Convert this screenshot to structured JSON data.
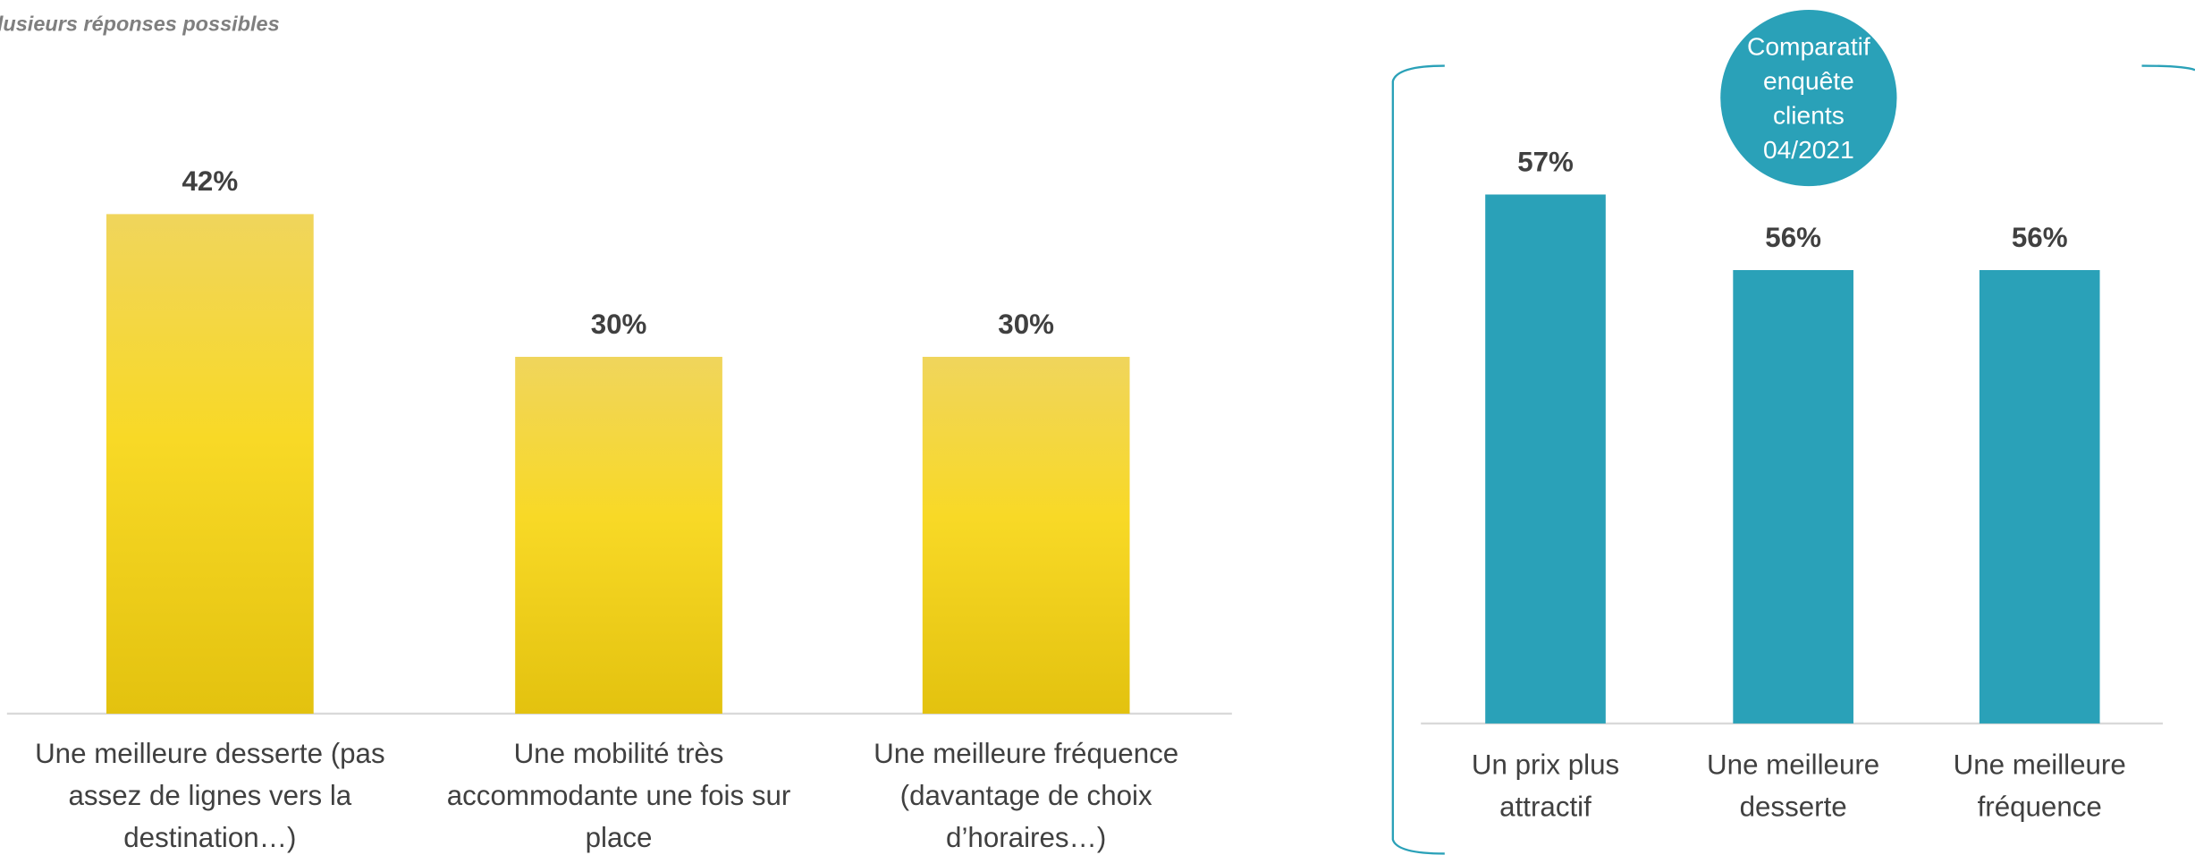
{
  "note": "lusieurs réponses possibles",
  "chart_data": [
    {
      "type": "bar",
      "categories": [
        "Une meilleure desserte (pas assez de lignes vers la destination…)",
        "Une mobilité très accommodante une fois sur place",
        "Une meilleure fréquence (davantage de choix d’horaires…)"
      ],
      "values": [
        42,
        30,
        30
      ],
      "value_labels": [
        "42%",
        "30%",
        "30%"
      ],
      "color": "#f5d423",
      "ylim": [
        0,
        50
      ]
    },
    {
      "type": "bar",
      "annotation": "Comparatif enquête clients 04/2021",
      "categories": [
        "Un prix plus attractif",
        "Une meilleure desserte",
        "Une meilleure fréquence"
      ],
      "values": [
        57,
        56,
        56
      ],
      "value_labels": [
        "57%",
        "56%",
        "56%"
      ],
      "color": "#2aa1b8",
      "ylim": [
        50,
        58
      ]
    }
  ]
}
